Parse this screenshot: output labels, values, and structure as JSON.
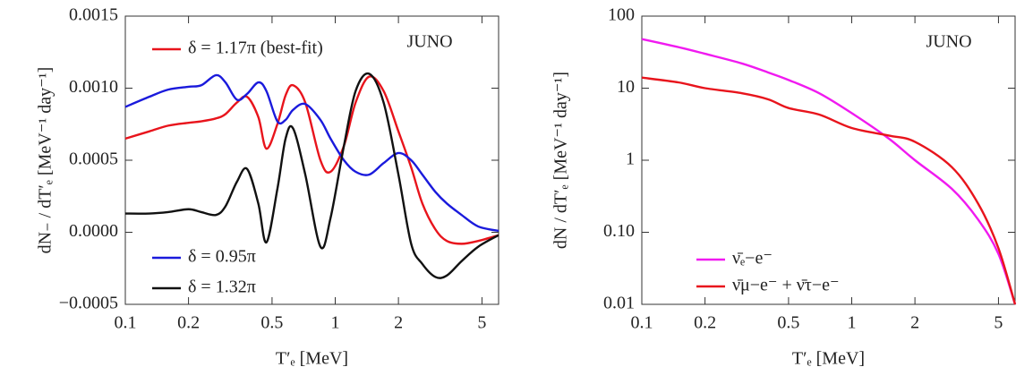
{
  "chart_data": [
    {
      "type": "line",
      "y_label": "dN₋ / dT′ₑ [MeV⁻¹ day⁻¹]",
      "x_label": "T′ₑ [MeV]",
      "annotation": "JUNO",
      "x_log": true,
      "y_log": false,
      "xlim": [
        0.1,
        6
      ],
      "xticks": [
        0.1,
        0.2,
        0.5,
        1,
        2,
        5
      ],
      "ylim": [
        -0.0005,
        0.0015
      ],
      "yticks": [
        {
          "value": -0.0005,
          "label": "−0.0005"
        },
        {
          "value": 0,
          "label": "0.0000"
        },
        0.0005,
        {
          "value": 0.001,
          "label": "0.0010"
        },
        0.0015
      ],
      "x": [
        0.1,
        0.13,
        0.16,
        0.2,
        0.23,
        0.27,
        0.3,
        0.34,
        0.38,
        0.43,
        0.47,
        0.53,
        0.58,
        0.63,
        0.72,
        0.85,
        0.95,
        1.1,
        1.25,
        1.45,
        1.7,
        2.0,
        2.3,
        2.6,
        3.0,
        3.4,
        4.0,
        4.8,
        6.0
      ],
      "series": [
        {
          "name": "δ = 1.17π (best-fit)",
          "color": "#e8141c",
          "values": [
            0.00065,
            0.0007,
            0.00074,
            0.00076,
            0.00077,
            0.00079,
            0.00082,
            0.0009,
            0.00094,
            0.0008,
            0.00058,
            0.00075,
            0.00095,
            0.00102,
            0.0009,
            0.0005,
            0.00042,
            0.0006,
            0.0009,
            0.00108,
            0.00098,
            0.0007,
            0.00045,
            0.0002,
            2e-05,
            -6e-05,
            -8e-05,
            -6e-05,
            -2e-05
          ]
        },
        {
          "name": "δ = 0.95π",
          "color": "#1a1adc",
          "values": [
            0.00087,
            0.00094,
            0.00099,
            0.00101,
            0.00102,
            0.00109,
            0.00104,
            0.00092,
            0.00096,
            0.00104,
            0.00098,
            0.00077,
            0.00078,
            0.00085,
            0.00089,
            0.00078,
            0.00065,
            0.0005,
            0.00042,
            0.0004,
            0.00048,
            0.00055,
            0.0005,
            0.0004,
            0.00028,
            0.0002,
            0.00012,
            4e-05,
            1e-05
          ]
        },
        {
          "name": "δ = 1.32π",
          "color": "#111111",
          "values": [
            0.00013,
            0.00013,
            0.00014,
            0.00016,
            0.00014,
            0.00012,
            0.00018,
            0.00035,
            0.00044,
            0.0002,
            -7e-05,
            0.0003,
            0.00065,
            0.00072,
            0.0004,
            -0.0001,
            0.0001,
            0.0006,
            0.00098,
            0.0011,
            0.0009,
            0.0004,
            -8e-05,
            -0.00022,
            -0.00031,
            -0.0003,
            -0.0002,
            -0.0001,
            -2e-05
          ]
        }
      ]
    },
    {
      "type": "line",
      "y_label": "dN / dT′ₑ [MeV⁻¹ day⁻¹]",
      "x_label": "T′ₑ [MeV]",
      "annotation": "JUNO",
      "x_log": true,
      "y_log": true,
      "xlim": [
        0.1,
        6
      ],
      "xticks": [
        0.1,
        0.2,
        0.5,
        1,
        2,
        5
      ],
      "ylim": [
        0.01,
        100
      ],
      "yticks": [
        0.01,
        {
          "value": 0.1,
          "label": "0.10"
        },
        1,
        10,
        100
      ],
      "x": [
        0.1,
        0.15,
        0.2,
        0.3,
        0.4,
        0.5,
        0.7,
        1,
        1.5,
        2,
        3,
        4,
        5,
        6
      ],
      "series": [
        {
          "name": "ν̄ₑ−e⁻",
          "color": "#f01af0",
          "values": [
            48,
            37,
            30,
            22,
            16.5,
            13,
            8.5,
            4.5,
            2,
            1,
            0.4,
            0.15,
            0.05,
            0.01
          ]
        },
        {
          "name": "ν̄μ−e⁻ + ν̄τ−e⁻",
          "color": "#e8141c",
          "values": [
            14,
            12,
            10,
            8.5,
            7,
            5.3,
            4.3,
            2.8,
            2.2,
            1.8,
            0.8,
            0.25,
            0.06,
            0.01
          ]
        }
      ]
    }
  ]
}
